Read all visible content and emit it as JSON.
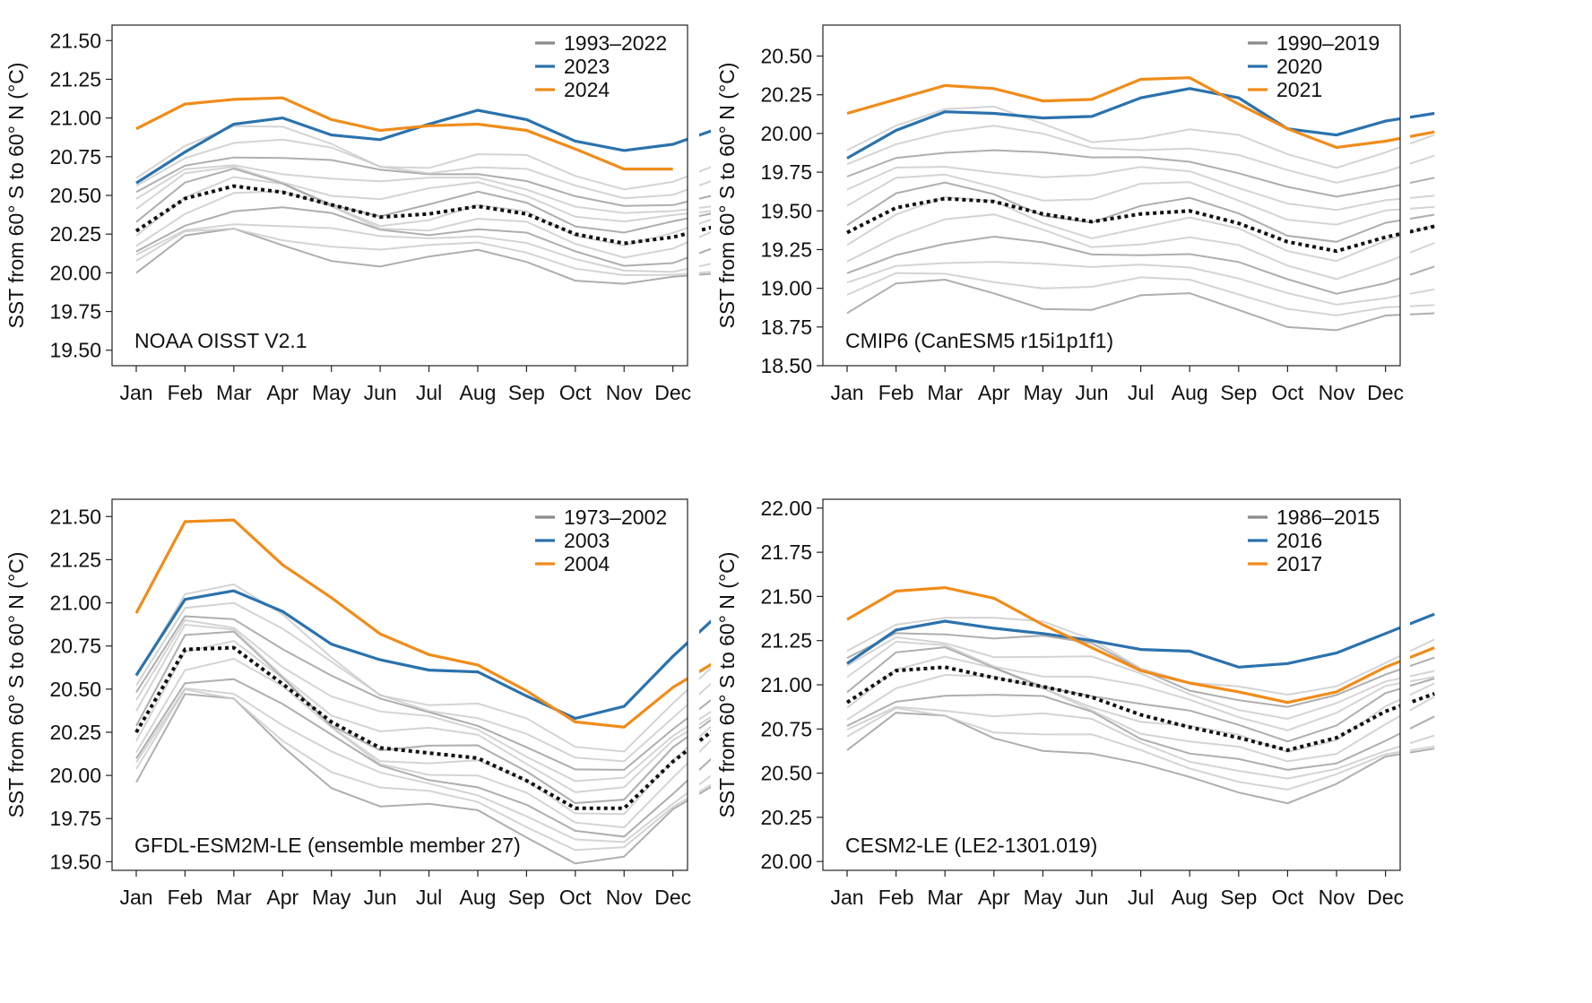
{
  "figure": {
    "months": [
      "Jan",
      "Feb",
      "Mar",
      "Apr",
      "May",
      "Jun",
      "Jul",
      "Aug",
      "Sep",
      "Oct",
      "Nov",
      "Dec"
    ],
    "ylabel": "SST from 60° S to 60° N (°C)",
    "colors": {
      "background_lines": "#c9c9c9",
      "mean_line": "#111111",
      "year1": "#2b72ad",
      "year2": "#f08c1a",
      "legend_gray": "#8a8a8a"
    }
  },
  "chart_data": [
    {
      "panel": "a",
      "type": "line",
      "label": "NOAA OISST V2.1",
      "ylim": [
        19.4,
        21.6
      ],
      "yticks": [
        "19.50",
        "19.75",
        "20.00",
        "20.25",
        "20.50",
        "20.75",
        "21.00",
        "21.25",
        "21.50"
      ],
      "legend": [
        "1993–2022",
        "2023",
        "2024"
      ],
      "mean": [
        20.27,
        20.48,
        20.56,
        20.52,
        20.44,
        20.36,
        20.38,
        20.43,
        20.38,
        20.25,
        20.19,
        20.23,
        20.31
      ],
      "series": [
        {
          "name": "2023",
          "values": [
            20.58,
            20.78,
            20.96,
            21.0,
            20.89,
            20.86,
            20.96,
            21.05,
            20.99,
            20.85,
            20.79,
            20.83,
            20.94
          ]
        },
        {
          "name": "2024",
          "values": [
            20.93,
            21.09,
            21.12,
            21.13,
            20.99,
            20.92,
            20.95,
            20.96,
            20.92,
            20.8,
            20.67,
            20.67
          ]
        }
      ],
      "spread": [
        -0.3,
        -0.24,
        -0.18,
        -0.12,
        -0.06,
        0.0,
        0.06,
        0.12,
        0.18,
        0.24,
        0.3,
        0.36
      ]
    },
    {
      "panel": "b",
      "type": "line",
      "label": "CMIP6 (CanESM5 r15i1p1f1)",
      "ylim": [
        18.5,
        20.7
      ],
      "yticks": [
        "18.50",
        "18.75",
        "19.00",
        "19.25",
        "19.50",
        "19.75",
        "20.00",
        "20.25",
        "20.50"
      ],
      "legend": [
        "1990–2019",
        "2020",
        "2021"
      ],
      "mean": [
        19.36,
        19.52,
        19.58,
        19.56,
        19.48,
        19.43,
        19.48,
        19.5,
        19.42,
        19.3,
        19.24,
        19.33,
        19.4
      ],
      "series": [
        {
          "name": "2020",
          "values": [
            19.84,
            20.02,
            20.14,
            20.13,
            20.1,
            20.11,
            20.23,
            20.29,
            20.23,
            20.03,
            19.99,
            20.08,
            20.13
          ]
        },
        {
          "name": "2021",
          "values": [
            20.13,
            20.22,
            20.31,
            20.29,
            20.21,
            20.22,
            20.35,
            20.36,
            20.19,
            20.03,
            19.91,
            19.95,
            20.01
          ]
        }
      ],
      "spread": [
        -0.55,
        -0.45,
        -0.35,
        -0.25,
        -0.15,
        -0.05,
        0.05,
        0.15,
        0.25,
        0.35,
        0.45,
        0.55
      ]
    },
    {
      "panel": "c",
      "type": "line",
      "label": "GFDL-ESM2M-LE (ensemble member 27)",
      "ylim": [
        19.45,
        21.6
      ],
      "yticks": [
        "19.50",
        "19.75",
        "20.00",
        "20.25",
        "20.50",
        "20.75",
        "21.00",
        "21.25",
        "21.50"
      ],
      "legend": [
        "1973–2002",
        "2003",
        "2004"
      ],
      "mean": [
        20.25,
        20.73,
        20.74,
        20.53,
        20.31,
        20.16,
        20.13,
        20.1,
        19.97,
        19.81,
        19.81,
        20.08,
        20.3
      ],
      "series": [
        {
          "name": "2003",
          "values": [
            20.58,
            21.02,
            21.07,
            20.95,
            20.76,
            20.67,
            20.61,
            20.6,
            20.46,
            20.33,
            20.4,
            20.69,
            20.95
          ]
        },
        {
          "name": "2004",
          "values": [
            20.94,
            21.47,
            21.48,
            21.22,
            21.03,
            20.82,
            20.7,
            20.64,
            20.49,
            20.31,
            20.28,
            20.51,
            20.68
          ]
        }
      ],
      "spread": [
        -0.32,
        -0.26,
        -0.2,
        -0.14,
        -0.08,
        -0.02,
        0.04,
        0.1,
        0.16,
        0.22,
        0.28,
        0.34
      ]
    },
    {
      "panel": "d",
      "type": "line",
      "label": "CESM2-LE (LE2-1301.019)",
      "ylim": [
        19.95,
        22.05
      ],
      "yticks": [
        "20.00",
        "20.25",
        "20.50",
        "20.75",
        "21.00",
        "21.25",
        "21.50",
        "21.75",
        "22.00"
      ],
      "legend": [
        "1986–2015",
        "2016",
        "2017"
      ],
      "mean": [
        20.9,
        21.08,
        21.1,
        21.04,
        20.99,
        20.93,
        20.83,
        20.76,
        20.7,
        20.63,
        20.7,
        20.85,
        20.95
      ],
      "series": [
        {
          "name": "2016",
          "values": [
            21.12,
            21.31,
            21.36,
            21.32,
            21.29,
            21.25,
            21.2,
            21.19,
            21.1,
            21.12,
            21.18,
            21.29,
            21.4
          ]
        },
        {
          "name": "2017",
          "values": [
            21.37,
            21.53,
            21.55,
            21.49,
            21.34,
            21.21,
            21.08,
            21.01,
            20.96,
            20.9,
            20.96,
            21.1,
            21.21
          ]
        }
      ],
      "spread": [
        -0.3,
        -0.24,
        -0.18,
        -0.12,
        -0.06,
        0.0,
        0.06,
        0.12,
        0.18,
        0.24,
        0.3
      ]
    }
  ]
}
